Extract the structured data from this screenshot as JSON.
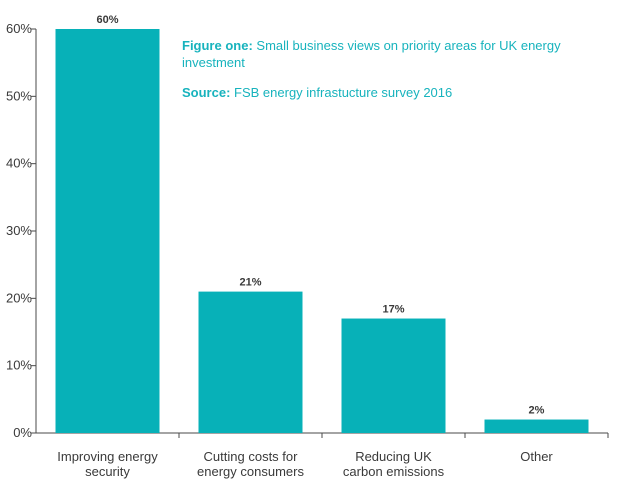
{
  "captions": {
    "figure_label": "Figure one:",
    "figure_text": "Small business views on priority areas for UK energy investment",
    "source_label": "Source:",
    "source_text": "FSB energy infrastucture survey 2016"
  },
  "chart_data": {
    "type": "bar",
    "categories": [
      [
        "Improving energy",
        "security"
      ],
      [
        "Cutting costs for",
        "energy consumers"
      ],
      [
        "Reducing UK",
        "carbon emissions"
      ],
      [
        "Other"
      ]
    ],
    "values": [
      60,
      21,
      17,
      2
    ],
    "data_labels": [
      "60%",
      "21%",
      "17%",
      "2%"
    ],
    "y_ticks": [
      "0%",
      "10%",
      "20%",
      "30%",
      "40%",
      "50%",
      "60%"
    ],
    "ylim": [
      0,
      60
    ],
    "bar_color": "#07b1b8",
    "grid": false
  }
}
